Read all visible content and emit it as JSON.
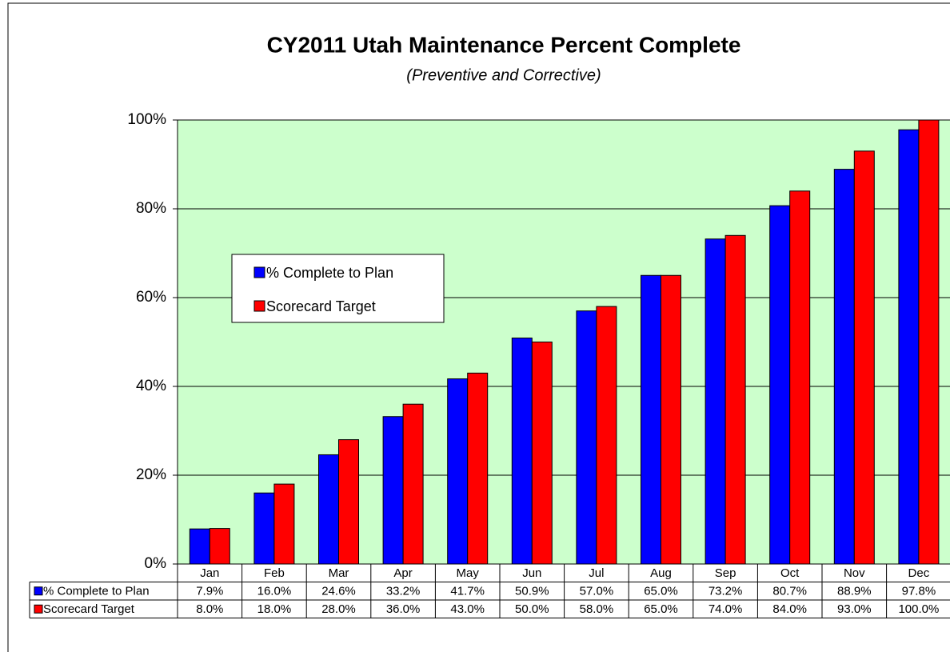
{
  "chart_data": {
    "type": "bar",
    "title": "CY2011 Utah Maintenance Percent Complete",
    "subtitle": "(Preventive and Corrective)",
    "categories": [
      "Jan",
      "Feb",
      "Mar",
      "Apr",
      "May",
      "Jun",
      "Jul",
      "Aug",
      "Sep",
      "Oct",
      "Nov",
      "Dec"
    ],
    "series": [
      {
        "name": "% Complete to Plan",
        "color": "#0000ff",
        "values": [
          7.9,
          16.0,
          24.6,
          33.2,
          41.7,
          50.9,
          57.0,
          65.0,
          73.2,
          80.7,
          88.9,
          97.8
        ],
        "value_labels": [
          "7.9%",
          "16.0%",
          "24.6%",
          "33.2%",
          "41.7%",
          "50.9%",
          "57.0%",
          "65.0%",
          "73.2%",
          "80.7%",
          "88.9%",
          "97.8%"
        ]
      },
      {
        "name": "Scorecard Target",
        "color": "#ff0000",
        "values": [
          8.0,
          18.0,
          28.0,
          36.0,
          43.0,
          50.0,
          58.0,
          65.0,
          74.0,
          84.0,
          93.0,
          100.0
        ],
        "value_labels": [
          "8.0%",
          "18.0%",
          "28.0%",
          "36.0%",
          "43.0%",
          "50.0%",
          "58.0%",
          "65.0%",
          "74.0%",
          "84.0%",
          "93.0%",
          "100.0%"
        ]
      }
    ],
    "ylim": [
      0,
      100
    ],
    "yticks": [
      {
        "value": 0,
        "label": "0%"
      },
      {
        "value": 20,
        "label": "20%"
      },
      {
        "value": 40,
        "label": "40%"
      },
      {
        "value": 60,
        "label": "60%"
      },
      {
        "value": 80,
        "label": "80%"
      },
      {
        "value": 100,
        "label": "100%"
      }
    ],
    "grid": true,
    "plot_background": "#ccffcc"
  }
}
